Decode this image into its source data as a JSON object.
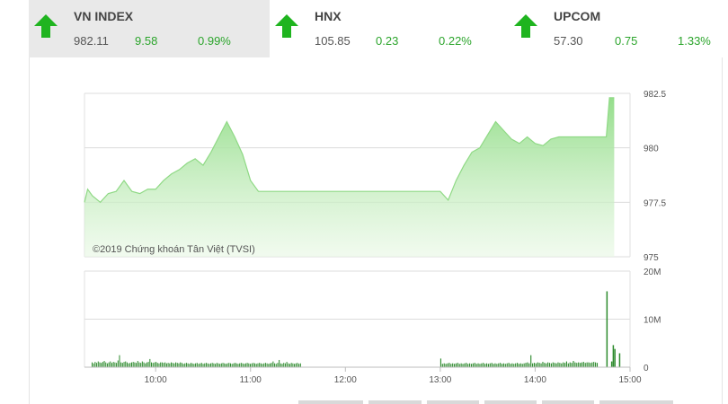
{
  "tabs": [
    {
      "name": "VN INDEX",
      "index": "982.11",
      "change": "9.58",
      "pct": "0.99%",
      "direction": "up"
    },
    {
      "name": "HNX",
      "index": "105.85",
      "change": "0.23",
      "pct": "0.22%",
      "direction": "up"
    },
    {
      "name": "UPCOM",
      "index": "57.30",
      "change": "0.75",
      "pct": "1.33%",
      "direction": "up"
    }
  ],
  "colors": {
    "up": "#1fb41f",
    "fill": "#a8e6a0",
    "line": "#8fd985",
    "volume": "#2e8b2e",
    "active_tab": "#e9e9e9"
  },
  "chart_data": [
    {
      "type": "area",
      "watermark": "©2019 Chứng khoán Tân Việt (TVSI)",
      "ylim": [
        975,
        982.5
      ],
      "yticks": [
        "975",
        "977.5",
        "980",
        "982.5"
      ],
      "x": [
        "09:15",
        "09:17",
        "09:20",
        "09:25",
        "09:30",
        "09:35",
        "09:40",
        "09:45",
        "09:50",
        "09:55",
        "10:00",
        "10:05",
        "10:10",
        "10:15",
        "10:20",
        "10:25",
        "10:30",
        "10:35",
        "10:40",
        "10:45",
        "10:50",
        "10:55",
        "11:00",
        "11:05",
        "11:10",
        "11:15",
        "11:20",
        "11:25",
        "11:30",
        "13:00",
        "13:05",
        "13:10",
        "13:15",
        "13:20",
        "13:25",
        "13:30",
        "13:35",
        "13:40",
        "13:45",
        "13:50",
        "13:55",
        "14:00",
        "14:05",
        "14:10",
        "14:15",
        "14:20",
        "14:25",
        "14:30",
        "14:35",
        "14:40",
        "14:45",
        "14:47",
        "14:50"
      ],
      "values": [
        977.5,
        978.1,
        977.8,
        977.5,
        977.9,
        978.0,
        978.5,
        978.0,
        977.9,
        978.1,
        978.1,
        978.5,
        978.8,
        979.0,
        979.3,
        979.5,
        979.2,
        979.8,
        980.5,
        981.2,
        980.5,
        979.7,
        978.5,
        978.0,
        978.0,
        978.0,
        978.0,
        978.0,
        978.0,
        978.0,
        977.6,
        978.5,
        979.2,
        979.8,
        980.0,
        980.6,
        981.2,
        980.8,
        980.4,
        980.2,
        980.5,
        980.2,
        980.1,
        980.4,
        980.5,
        980.5,
        980.5,
        980.5,
        980.5,
        980.5,
        980.5,
        982.3,
        982.3
      ]
    },
    {
      "type": "bar",
      "ylim": [
        0,
        20
      ],
      "yticks": [
        "0",
        "10M",
        "20M"
      ],
      "xticks": [
        "10:00",
        "11:00",
        "12:00",
        "13:00",
        "14:00",
        "15:00"
      ],
      "morning_bars": [
        1.0,
        0.8,
        1.1,
        0.9,
        1.2,
        1.0,
        0.9,
        1.1,
        1.3,
        1.0,
        0.8,
        1.0,
        1.2,
        0.9,
        1.1,
        1.0,
        0.9,
        1.4,
        2.5,
        1.0,
        0.9,
        1.1,
        1.2,
        1.0,
        0.8,
        0.9,
        1.0,
        1.1,
        1.0,
        0.9,
        1.3,
        1.0,
        0.9,
        1.2,
        1.0,
        0.8,
        1.0,
        1.1,
        1.7,
        1.0,
        0.9,
        1.0,
        1.1,
        0.9,
        0.8,
        1.0,
        1.0,
        0.9,
        1.0,
        0.8,
        0.9,
        0.8,
        1.0,
        0.9,
        0.8,
        1.0,
        0.9,
        0.8,
        1.0,
        0.9,
        0.7,
        0.8,
        0.9,
        0.8,
        0.7,
        0.9,
        0.8,
        0.7,
        0.8,
        0.9,
        0.7,
        0.8,
        0.9,
        0.7,
        0.8,
        0.9,
        0.8,
        0.7,
        0.8,
        0.9,
        0.8,
        0.7,
        0.9,
        0.8,
        0.7,
        0.8,
        0.9,
        0.8,
        0.7,
        0.8,
        0.9,
        0.8,
        0.7,
        0.8,
        0.9,
        0.8,
        0.7,
        0.8,
        0.9,
        0.8,
        0.7,
        0.8,
        0.9,
        0.8,
        0.7,
        0.8,
        0.9,
        0.8,
        0.7,
        0.8,
        0.9,
        0.8,
        0.7,
        0.8,
        0.9,
        0.8,
        0.7,
        0.8,
        0.9,
        1.2,
        0.8,
        0.7,
        0.9,
        1.5,
        0.8,
        0.7,
        0.9,
        0.8,
        1.1,
        0.8,
        0.7,
        0.9,
        0.8,
        0.7,
        0.8,
        0.9,
        0.7,
        0.8
      ],
      "afternoon_bars": [
        1.8,
        0.7,
        0.8,
        0.7,
        0.8,
        0.9,
        0.7,
        0.8,
        0.7,
        0.8,
        0.9,
        0.7,
        0.8,
        0.7,
        0.8,
        0.9,
        0.7,
        0.8,
        0.7,
        0.8,
        0.9,
        0.7,
        0.8,
        0.7,
        0.8,
        0.9,
        0.7,
        0.8,
        0.7,
        0.8,
        0.9,
        0.7,
        0.8,
        0.7,
        0.8,
        0.9,
        0.7,
        0.8,
        0.7,
        0.8,
        0.9,
        0.7,
        0.8,
        0.7,
        0.8,
        0.9,
        0.7,
        0.8,
        0.7,
        0.8,
        0.9,
        1.0,
        0.8,
        2.5,
        0.8,
        0.9,
        0.8,
        1.0,
        0.9,
        0.8,
        1.1,
        0.9,
        0.8,
        1.0,
        0.9,
        0.8,
        1.0,
        0.9,
        0.8,
        1.0,
        0.9,
        0.8,
        1.0,
        0.9,
        1.2,
        0.8,
        1.0,
        0.9,
        1.3,
        1.0,
        0.9,
        1.0,
        0.9,
        1.0,
        1.1,
        0.9,
        1.0,
        1.0,
        0.9,
        1.0,
        1.1,
        1.0,
        0.9
      ],
      "closing_bars": [
        15.8,
        1.2,
        4.6,
        3.8,
        2.9
      ]
    }
  ]
}
